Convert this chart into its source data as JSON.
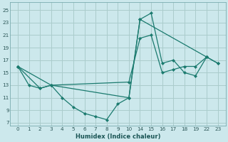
{
  "xlabel": "Humidex (Indice chaleur)",
  "bg_color": "#cce8ec",
  "grid_color": "#aacccc",
  "line_color": "#1a7a6e",
  "xtick_labels": [
    "0",
    "1",
    "2",
    "3",
    "4",
    "5",
    "6",
    "7",
    "8",
    "9",
    "10",
    "14",
    "15",
    "16",
    "17",
    "18",
    "19",
    "22",
    "23"
  ],
  "yticks": [
    7,
    9,
    11,
    13,
    15,
    17,
    19,
    21,
    23,
    25
  ],
  "ylim": [
    6.5,
    26.2
  ],
  "series1_pts": [
    [
      0,
      16
    ],
    [
      1,
      13
    ],
    [
      2,
      12.5
    ],
    [
      3,
      13
    ],
    [
      4,
      11
    ],
    [
      5,
      9.5
    ],
    [
      6,
      8.5
    ],
    [
      7,
      8
    ],
    [
      8,
      7.5
    ],
    [
      9,
      10
    ],
    [
      10,
      11
    ],
    [
      11,
      23.5
    ],
    [
      12,
      24.5
    ],
    [
      13,
      16.5
    ],
    [
      14,
      17
    ],
    [
      15,
      15
    ],
    [
      16,
      14.5
    ],
    [
      17,
      17.5
    ],
    [
      18,
      16.5
    ]
  ],
  "series2_pts": [
    [
      0,
      16
    ],
    [
      2,
      12.5
    ],
    [
      3,
      13
    ],
    [
      10,
      13.5
    ],
    [
      11,
      20.5
    ],
    [
      12,
      21
    ],
    [
      13,
      15
    ],
    [
      14,
      15.5
    ],
    [
      15,
      16
    ],
    [
      16,
      16
    ],
    [
      17,
      17.5
    ],
    [
      18,
      16.5
    ]
  ],
  "series3_pts": [
    [
      0,
      16
    ],
    [
      3,
      13
    ],
    [
      10,
      11
    ],
    [
      11,
      23.5
    ],
    [
      17,
      17.5
    ]
  ]
}
